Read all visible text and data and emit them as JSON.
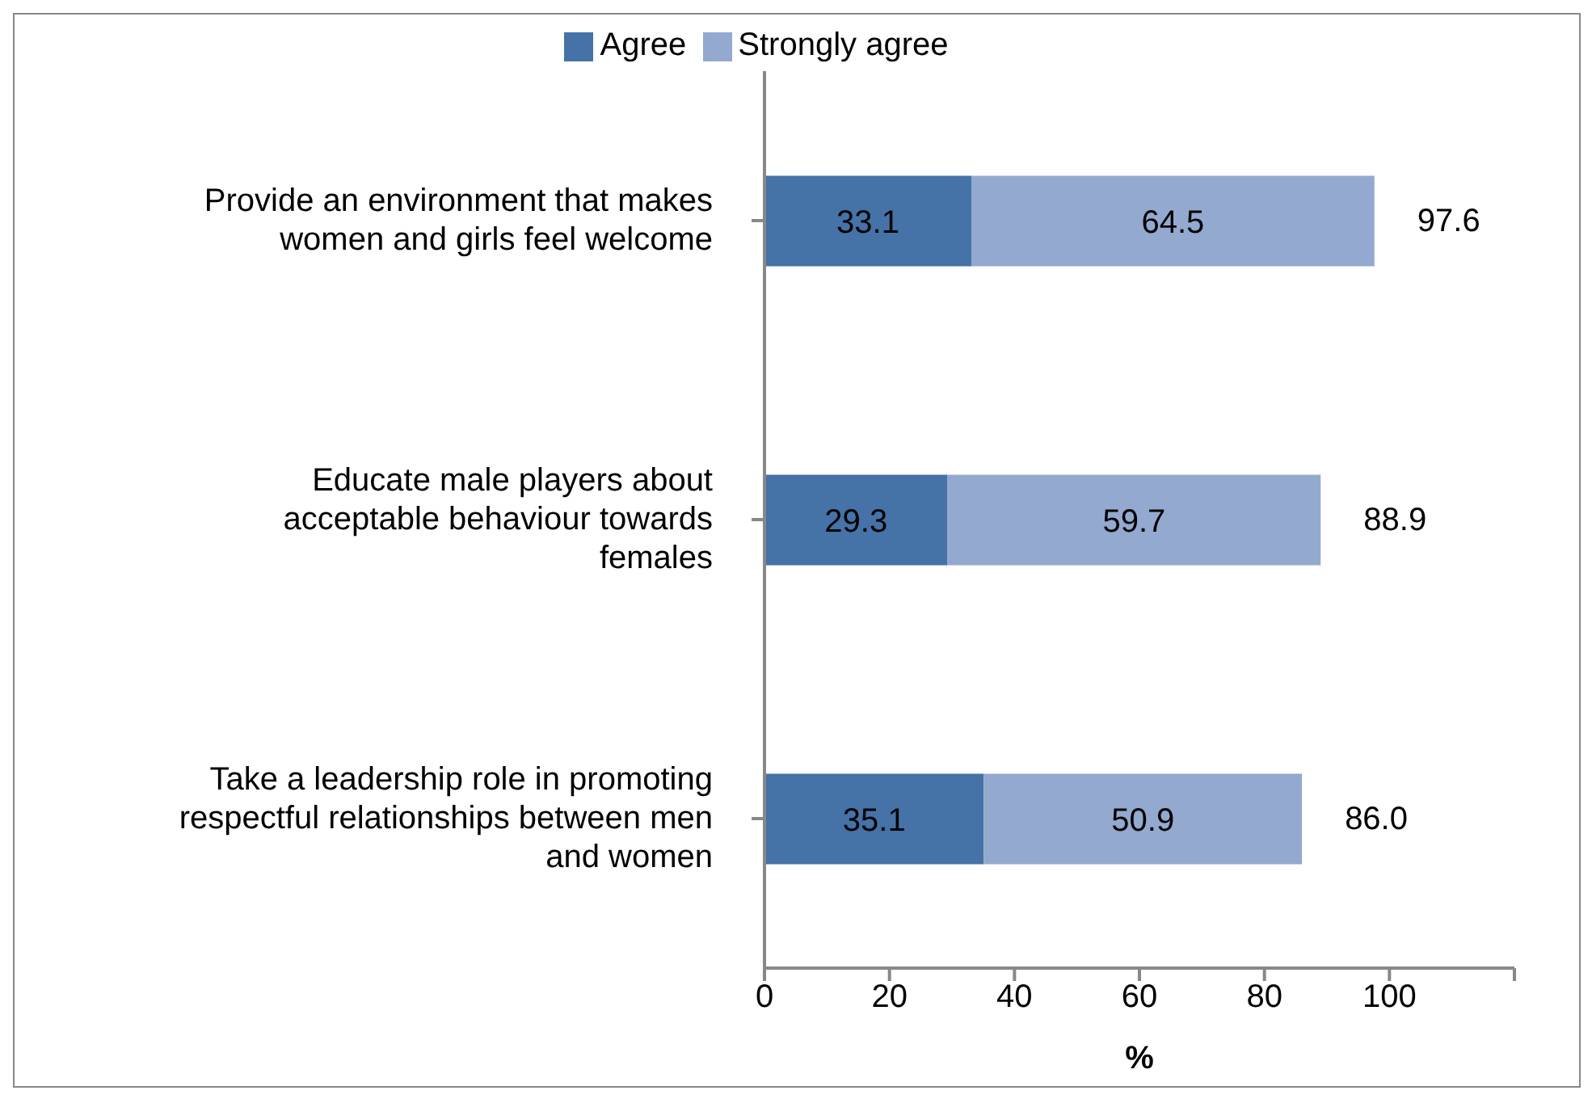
{
  "chart_data": {
    "type": "bar",
    "orientation": "horizontal",
    "stacked": true,
    "xlabel": "%",
    "categories": [
      "Provide an environment that makes women and girls feel welcome",
      "Educate male players about acceptable behaviour towards females",
      "Take a leadership role in promoting respectful relationships between men and women"
    ],
    "series": [
      {
        "name": "Agree",
        "color": "#4572a7",
        "values": [
          33.1,
          29.3,
          35.1
        ]
      },
      {
        "name": "Strongly agree",
        "color": "#93a9cf",
        "values": [
          64.5,
          59.7,
          50.9
        ]
      }
    ],
    "totals": [
      "97.6",
      "88.9",
      "86.0"
    ],
    "data_labels": true,
    "xlim": [
      0,
      120
    ],
    "xticks": [
      0,
      20,
      40,
      60,
      80,
      100,
      {
        "value": 120,
        "label": null
      }
    ],
    "legend": "top"
  }
}
